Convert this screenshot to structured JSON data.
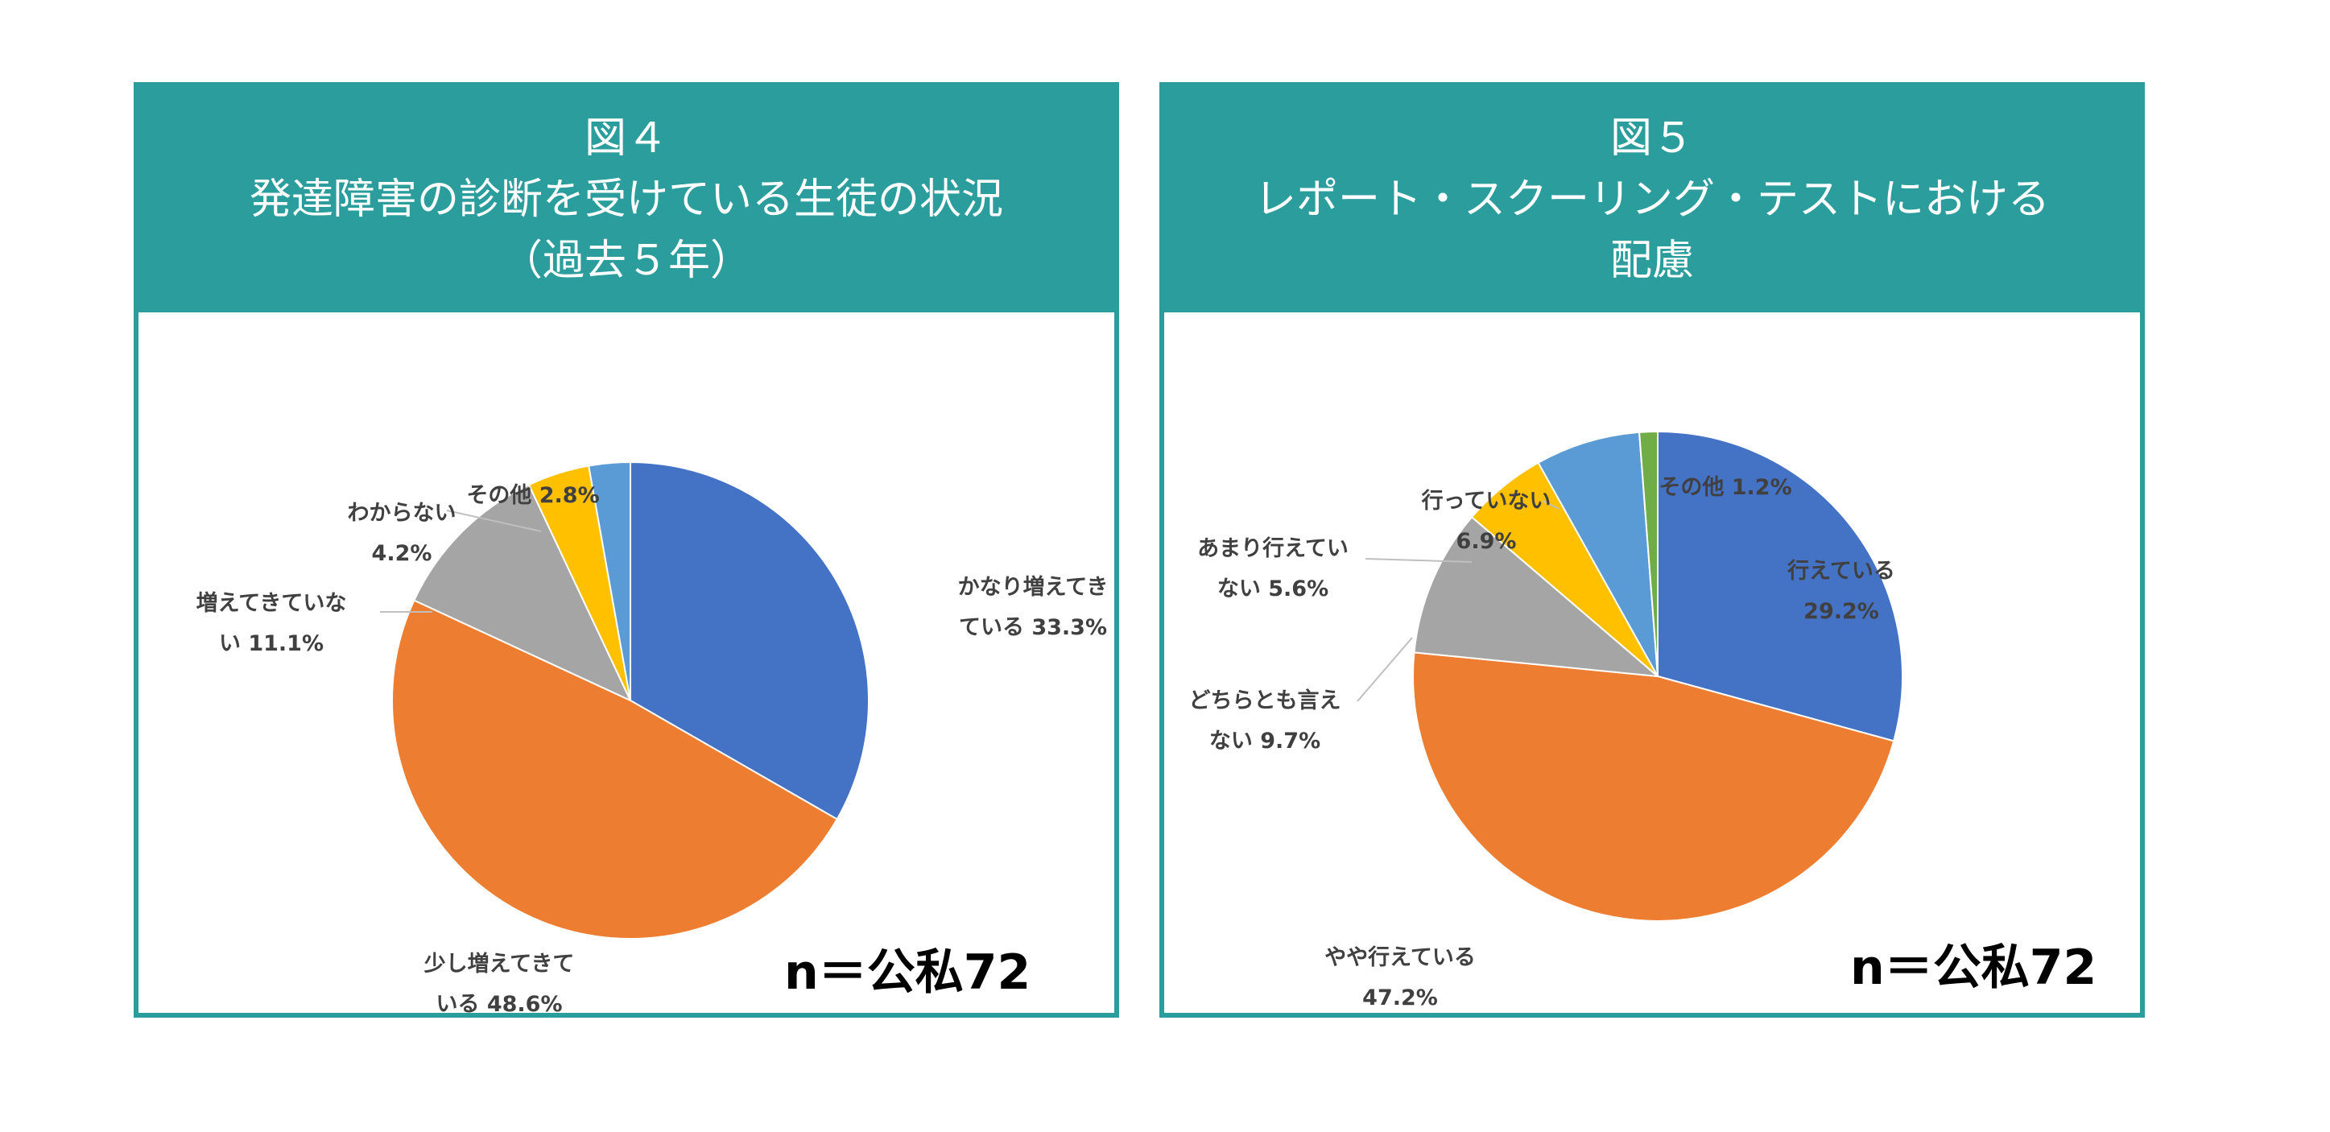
{
  "figures": [
    {
      "id": "fig4",
      "title_lines": [
        "図４",
        "発達障害の診断を受けている生徒の状況",
        "（過去５年）"
      ],
      "note": "n＝公私72"
    },
    {
      "id": "fig5",
      "title_lines": [
        "図５",
        "レポート・スクーリング・テストにおける",
        "配慮"
      ],
      "note": "n＝公私72"
    }
  ],
  "chart_data": [
    {
      "type": "pie",
      "categories": [
        "かなり増えてきている",
        "少し増えてきている",
        "増えてきていない",
        "わからない",
        "その他"
      ],
      "values": [
        33.3,
        48.6,
        11.1,
        4.2,
        2.8
      ],
      "colors": [
        "#4472c4",
        "#ed7d31",
        "#a5a5a5",
        "#ffc000",
        "#5b9bd5"
      ],
      "label_lines": [
        [
          "かなり増えてき",
          "ている 33.3%"
        ],
        [
          "少し増えてきて",
          "いる 48.6%"
        ],
        [
          "増えてきていな",
          "い 11.1%"
        ],
        [
          "わからない",
          "4.2%"
        ],
        [
          "その他 2.8%"
        ]
      ]
    },
    {
      "type": "pie",
      "categories": [
        "行えている",
        "やや行えている",
        "どちらとも言えない",
        "あまり行えていない",
        "行っていない",
        "その他"
      ],
      "values": [
        29.2,
        47.2,
        9.7,
        5.6,
        6.9,
        1.2
      ],
      "colors": [
        "#4472c4",
        "#ed7d31",
        "#a5a5a5",
        "#ffc000",
        "#5b9bd5",
        "#70ad47"
      ],
      "label_lines": [
        [
          "行えている",
          "29.2%"
        ],
        [
          "やや行えている",
          "47.2%"
        ],
        [
          "どちらとも言え",
          "ない 9.7%"
        ],
        [
          "あまり行えてい",
          "ない 5.6%"
        ],
        [
          "行っていない",
          "6.9%"
        ],
        [
          "その他 1.2%"
        ]
      ]
    }
  ]
}
